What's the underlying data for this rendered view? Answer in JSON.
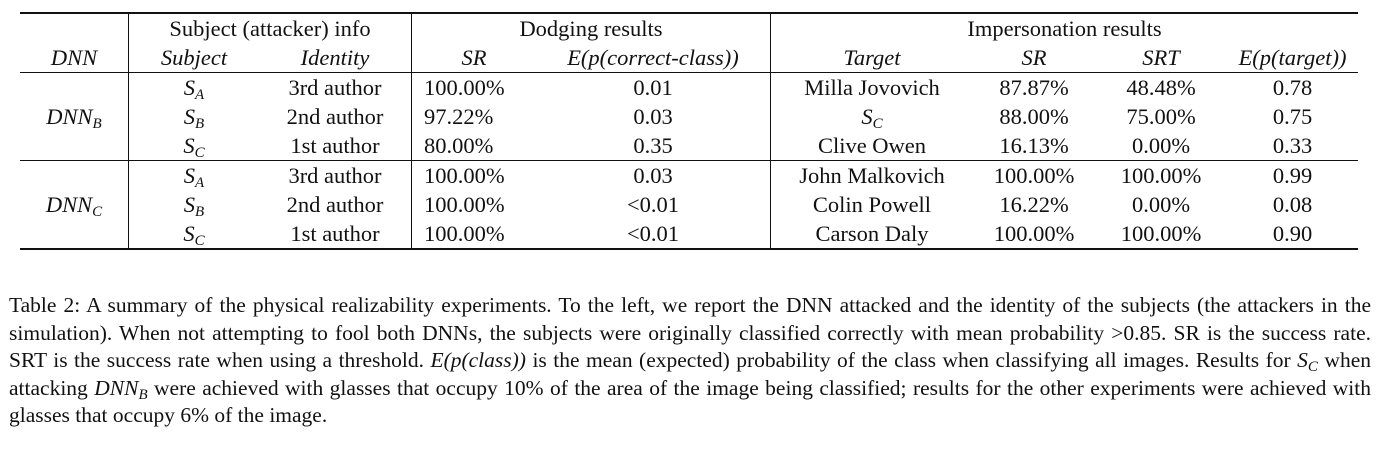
{
  "table": {
    "group_headers": {
      "subject_info": "Subject (attacker) info",
      "dodging": "Dodging results",
      "impersonation": "Impersonation results"
    },
    "columns": {
      "dnn": "DNN",
      "subject": "Subject",
      "identity": "Identity",
      "dodge_sr": "SR",
      "dodge_e": "E(p(correct-class))",
      "target": "Target",
      "imp_sr": "SR",
      "imp_srt": "SRT",
      "imp_e": "E(p(target))"
    },
    "groups": [
      {
        "dnn_base": "DNN",
        "dnn_sub": "B",
        "rows": [
          {
            "subject_base": "S",
            "subject_sub": "A",
            "identity": "3rd author",
            "dodge_sr": "100.00%",
            "dodge_e": "0.01",
            "target": "Milla Jovovich",
            "target_is_subject": false,
            "imp_sr": "87.87%",
            "imp_srt": "48.48%",
            "imp_e": "0.78"
          },
          {
            "subject_base": "S",
            "subject_sub": "B",
            "identity": "2nd author",
            "dodge_sr": "97.22%",
            "dodge_e": "0.03",
            "target": "S",
            "target_sub": "C",
            "target_is_subject": true,
            "imp_sr": "88.00%",
            "imp_srt": "75.00%",
            "imp_e": "0.75"
          },
          {
            "subject_base": "S",
            "subject_sub": "C",
            "identity": "1st author",
            "dodge_sr": "80.00%",
            "dodge_e": "0.35",
            "target": "Clive Owen",
            "target_is_subject": false,
            "imp_sr": "16.13%",
            "imp_srt": "0.00%",
            "imp_e": "0.33"
          }
        ]
      },
      {
        "dnn_base": "DNN",
        "dnn_sub": "C",
        "rows": [
          {
            "subject_base": "S",
            "subject_sub": "A",
            "identity": "3rd author",
            "dodge_sr": "100.00%",
            "dodge_e": "0.03",
            "target": "John Malkovich",
            "target_is_subject": false,
            "imp_sr": "100.00%",
            "imp_srt": "100.00%",
            "imp_e": "0.99"
          },
          {
            "subject_base": "S",
            "subject_sub": "B",
            "identity": "2nd author",
            "dodge_sr": "100.00%",
            "dodge_e": "<0.01",
            "target": "Colin Powell",
            "target_is_subject": false,
            "imp_sr": "16.22%",
            "imp_srt": "0.00%",
            "imp_e": "0.08"
          },
          {
            "subject_base": "S",
            "subject_sub": "C",
            "identity": "1st author",
            "dodge_sr": "100.00%",
            "dodge_e": "<0.01",
            "target": "Carson Daly",
            "target_is_subject": false,
            "imp_sr": "100.00%",
            "imp_srt": "100.00%",
            "imp_e": "0.90"
          }
        ]
      }
    ]
  },
  "caption": {
    "p1": "Table 2: A summary of the physical realizability experiments. To the left, we report the DNN attacked and the identity of the subjects (the attackers in the simulation). When not attempting to fool both DNNs, the subjects were originally classified correctly with mean probability >0.85. SR is the success rate. SRT is the success rate when using a threshold. ",
    "e_class": "E(p(class))",
    "p2": " is the mean (expected) probability of the class when classifying all images. Results for ",
    "s_base": "S",
    "s_sub": "C",
    "p3": " when attacking ",
    "dnn_base": "DNN",
    "dnn_sub": "B",
    "p4": " were achieved with glasses that occupy 10% of the area of the image being classified; results for the other experiments were achieved with glasses that occupy 6% of the image."
  }
}
